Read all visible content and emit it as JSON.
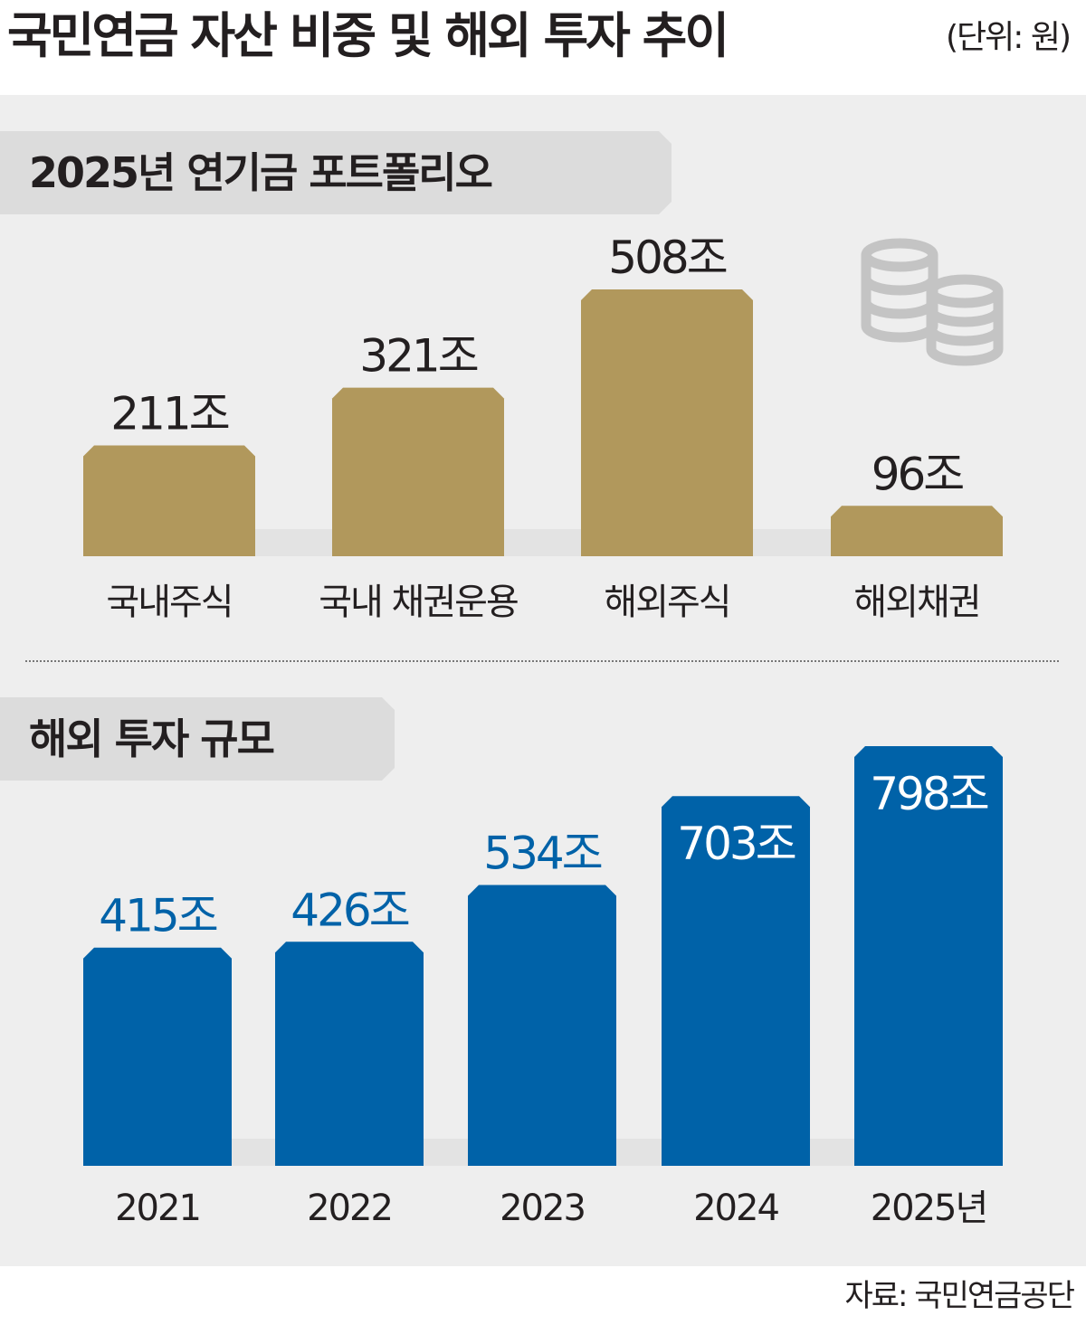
{
  "header": {
    "title": "국민연금 자산 비중 및 해외 투자 추이",
    "unit": "(단위: 원)"
  },
  "sections": {
    "portfolio_title": "2025년 연기금 포트폴리오",
    "overseas_title": "해외 투자 규모"
  },
  "source": "자료: 국민연금공단",
  "icon": "coins-icon",
  "colors": {
    "gold": "#b1985c",
    "blue": "#0062a8",
    "panel": "#eeeeee",
    "tag": "#dcdcdc"
  },
  "chart_data": [
    {
      "type": "bar",
      "title": "2025년 연기금 포트폴리오",
      "categories": [
        "국내주식",
        "국내 채권운용",
        "해외주식",
        "해외채권"
      ],
      "values": [
        211,
        321,
        508,
        96
      ],
      "value_labels": [
        "211조",
        "321조",
        "508조",
        "96조"
      ],
      "unit": "조",
      "color": "#b1985c",
      "ylim": [
        0,
        508
      ],
      "grid": false
    },
    {
      "type": "bar",
      "title": "해외 투자 규모",
      "categories": [
        "2021",
        "2022",
        "2023",
        "2024",
        "2025년"
      ],
      "values": [
        415,
        426,
        534,
        703,
        798
      ],
      "value_labels": [
        "415조",
        "426조",
        "534조",
        "703조",
        "798조"
      ],
      "unit": "조",
      "color": "#0062a8",
      "ylim": [
        0,
        798
      ],
      "grid": false
    }
  ]
}
